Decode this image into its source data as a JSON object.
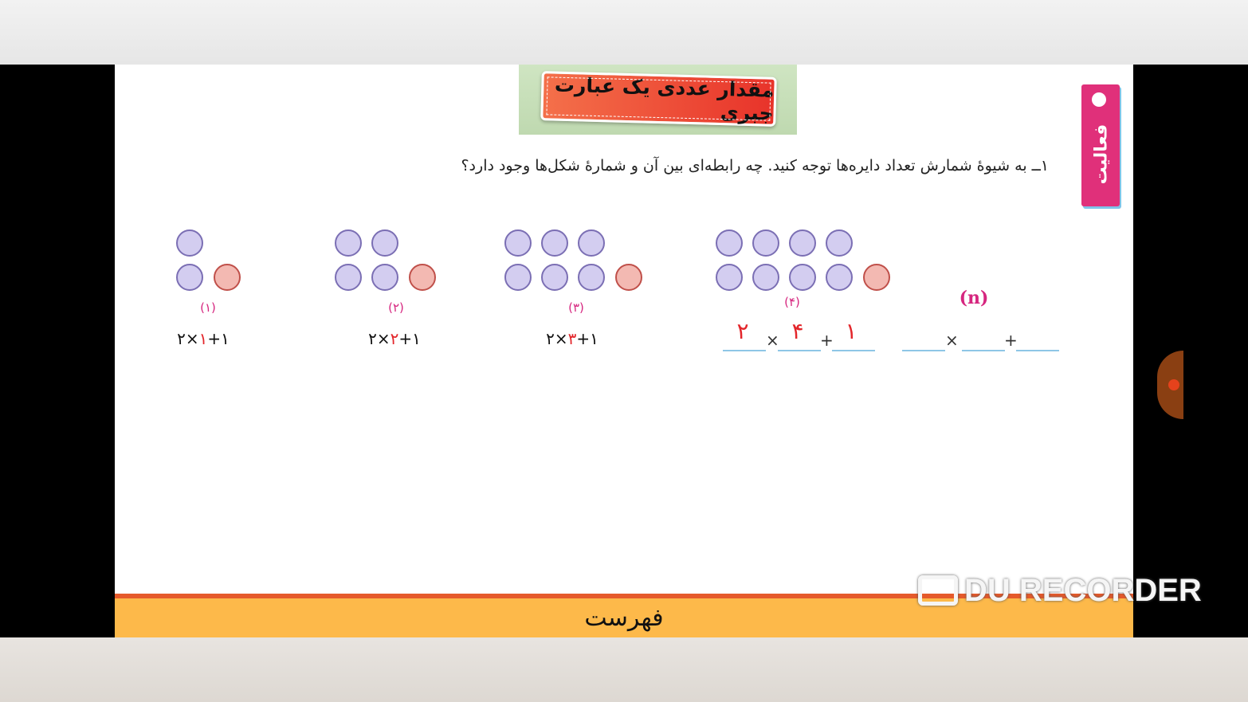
{
  "lesson": {
    "title": "مقدار عددی یک عبارت جبری",
    "activity_tab": "فعالیت"
  },
  "question": "۱ــ به شیوهٔ شمارش تعداد دایره‌ها توجه کنید. چه رابطه‌ای بین آن و شمارهٔ شکل‌ها وجود دارد؟",
  "figures": [
    {
      "label": "(۱)",
      "formula": [
        "۲×",
        "۱",
        "+۱"
      ]
    },
    {
      "label": "(۲)",
      "formula": [
        "۲×",
        "۲",
        "+۱"
      ]
    },
    {
      "label": "(۳)",
      "formula": [
        "۲×",
        "۳",
        "+۱"
      ]
    },
    {
      "label": "(۴)",
      "answers": [
        "۲",
        "۴",
        "۱"
      ]
    },
    {
      "label": "(n)"
    }
  ],
  "operators": {
    "times": "×",
    "plus": "+"
  },
  "footer": {
    "menu_label": "فهرست"
  },
  "watermark": "DU RECORDER",
  "colors": {
    "circle": "#d3cdf0",
    "extra_circle": "#f3b9b2",
    "label": "#d6267f",
    "answer": "#e3262b",
    "footer": "#fdb94a"
  }
}
